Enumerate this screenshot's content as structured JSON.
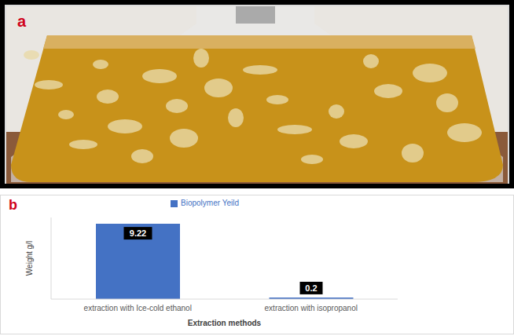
{
  "panel_labels": [
    "a",
    "b"
  ],
  "chart_data": {
    "type": "bar",
    "categories": [
      "extraction with Ice-cold ethanol",
      "extraction with isopropanol"
    ],
    "series": [
      {
        "name": "Biopolymer Yeild",
        "color": "#4472c4",
        "values": [
          9.22,
          0.2
        ]
      }
    ],
    "x_label": "Extraction methods",
    "y_label": "Weight g/l",
    "ylim": [
      0,
      10
    ],
    "data_labels": true,
    "legend": "top",
    "tick_labels": "x",
    "grid": false
  }
}
